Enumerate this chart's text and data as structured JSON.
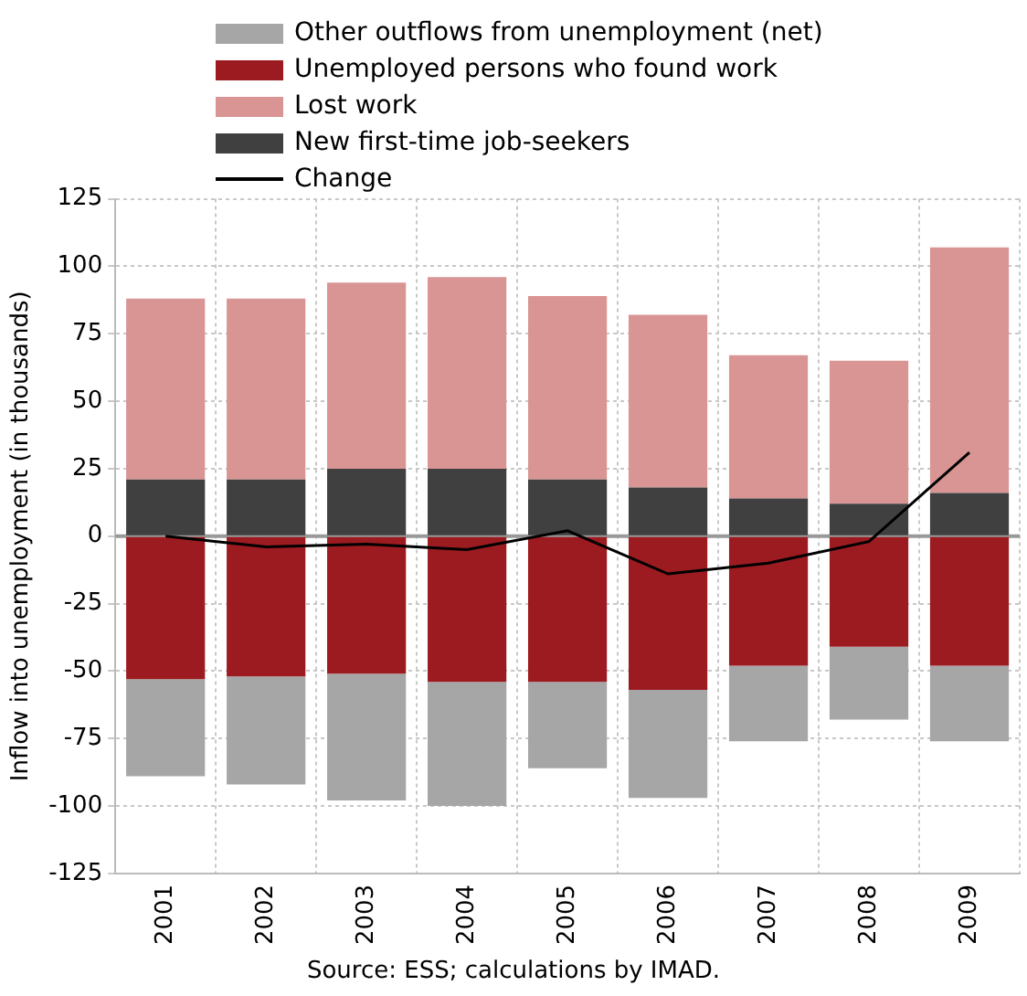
{
  "chart_data": {
    "type": "bar",
    "stacked": true,
    "ylabel": "Inflow into unemployment (in thousands)",
    "categories": [
      "2001",
      "2002",
      "2003",
      "2004",
      "2005",
      "2006",
      "2007",
      "2008",
      "2009"
    ],
    "series": [
      {
        "name": "New first-time job-seekers",
        "color": "#404040",
        "values": [
          21,
          21,
          25,
          25,
          21,
          18,
          14,
          12,
          16
        ]
      },
      {
        "name": "Lost work",
        "color": "#d99594",
        "values": [
          67,
          67,
          69,
          71,
          68,
          64,
          53,
          53,
          91
        ]
      },
      {
        "name": "Unemployed persons who found work",
        "color": "#9b1b20",
        "values": [
          -53,
          -52,
          -51,
          -54,
          -54,
          -57,
          -48,
          -41,
          -48
        ]
      },
      {
        "name": "Other outflows from unemployment (net)",
        "color": "#a6a6a6",
        "values": [
          -36,
          -40,
          -47,
          -46,
          -32,
          -40,
          -28,
          -27,
          -28
        ]
      },
      {
        "name": "Change",
        "type": "line",
        "color": "#000000",
        "values": [
          0,
          -4,
          -3,
          -5,
          2,
          -14,
          -10,
          -2,
          31
        ]
      }
    ],
    "ylim": [
      -125,
      125
    ],
    "yticks": [
      -125,
      -100,
      -75,
      -50,
      -25,
      0,
      25,
      50,
      75,
      100,
      125
    ],
    "grid": true,
    "ref_lines": [
      {
        "axis": "y",
        "value": 0,
        "color": "#999999"
      }
    ],
    "legend": "top",
    "marker": "none",
    "annotations": [
      "Source: ESS; calculations by IMAD."
    ]
  }
}
